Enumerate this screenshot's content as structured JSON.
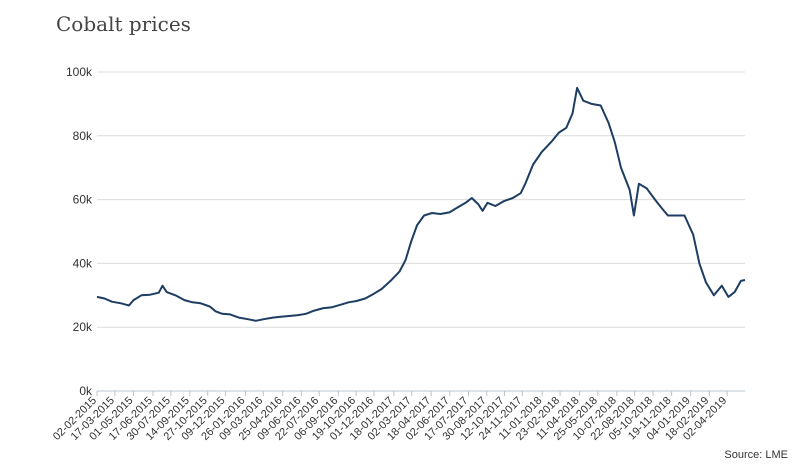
{
  "chart_data": {
    "type": "line",
    "title": "Cobalt prices",
    "source": "Source: LME",
    "xlabel": "",
    "ylabel": "",
    "ylim": [
      0,
      100000
    ],
    "y_ticks": [
      {
        "value": 0,
        "label": "0k"
      },
      {
        "value": 20000,
        "label": "20k"
      },
      {
        "value": 40000,
        "label": "40k"
      },
      {
        "value": 60000,
        "label": "60k"
      },
      {
        "value": 80000,
        "label": "80k"
      },
      {
        "value": 100000,
        "label": "100k"
      }
    ],
    "x_ticks": [
      "02-02-2015",
      "17-03-2015",
      "01-05-2015",
      "17-06-2015",
      "30-07-2015",
      "14-09-2015",
      "27-10-2015",
      "09-12-2015",
      "26-01-2016",
      "09-03-2016",
      "25-04-2016",
      "09-06-2016",
      "22-07-2016",
      "06-09-2016",
      "19-10-2016",
      "01-12-2016",
      "18-01-2017",
      "02-03-2017",
      "18-04-2017",
      "02-06-2017",
      "17-07-2017",
      "30-08-2017",
      "12-10-2017",
      "24-11-2017",
      "11-01-2018",
      "23-02-2018",
      "11-04-2018",
      "25-05-2018",
      "10-07-2018",
      "22-08-2018",
      "05-10-2018",
      "19-11-2018",
      "04-01-2019",
      "18-02-2019",
      "02-04-2019"
    ],
    "grid": true,
    "color": "#1d3d63",
    "series": [
      {
        "name": "",
        "points": [
          [
            "02-02-2015",
            29500
          ],
          [
            "20-02-2015",
            29000
          ],
          [
            "10-03-2015",
            28000
          ],
          [
            "01-04-2015",
            27500
          ],
          [
            "20-04-2015",
            26800
          ],
          [
            "01-05-2015",
            28500
          ],
          [
            "20-05-2015",
            30000
          ],
          [
            "10-06-2015",
            30200
          ],
          [
            "01-07-2015",
            30800
          ],
          [
            "10-07-2015",
            33000
          ],
          [
            "20-07-2015",
            31000
          ],
          [
            "10-08-2015",
            30000
          ],
          [
            "01-09-2015",
            28500
          ],
          [
            "20-09-2015",
            27800
          ],
          [
            "10-10-2015",
            27500
          ],
          [
            "01-11-2015",
            26500
          ],
          [
            "15-11-2015",
            25000
          ],
          [
            "01-12-2015",
            24200
          ],
          [
            "20-12-2015",
            24000
          ],
          [
            "10-01-2016",
            23000
          ],
          [
            "01-02-2016",
            22500
          ],
          [
            "20-02-2016",
            22000
          ],
          [
            "10-03-2016",
            22500
          ],
          [
            "01-04-2016",
            23000
          ],
          [
            "20-04-2016",
            23300
          ],
          [
            "10-05-2016",
            23500
          ],
          [
            "01-06-2016",
            23800
          ],
          [
            "20-06-2016",
            24200
          ],
          [
            "10-07-2016",
            25200
          ],
          [
            "01-08-2016",
            26000
          ],
          [
            "20-08-2016",
            26200
          ],
          [
            "10-09-2016",
            27000
          ],
          [
            "01-10-2016",
            27800
          ],
          [
            "20-10-2016",
            28200
          ],
          [
            "10-11-2016",
            29000
          ],
          [
            "01-12-2016",
            30500
          ],
          [
            "20-12-2016",
            32000
          ],
          [
            "10-01-2017",
            34500
          ],
          [
            "01-02-2017",
            37500
          ],
          [
            "15-02-2017",
            41000
          ],
          [
            "01-03-2017",
            47000
          ],
          [
            "15-03-2017",
            52000
          ],
          [
            "01-04-2017",
            55000
          ],
          [
            "20-04-2017",
            55800
          ],
          [
            "10-05-2017",
            55500
          ],
          [
            "01-06-2017",
            56000
          ],
          [
            "20-06-2017",
            57500
          ],
          [
            "10-07-2017",
            59000
          ],
          [
            "25-07-2017",
            60500
          ],
          [
            "10-08-2017",
            58500
          ],
          [
            "20-08-2017",
            56500
          ],
          [
            "01-09-2017",
            59000
          ],
          [
            "20-09-2017",
            58000
          ],
          [
            "10-10-2017",
            59500
          ],
          [
            "01-11-2017",
            60500
          ],
          [
            "20-11-2017",
            62000
          ],
          [
            "01-12-2017",
            65000
          ],
          [
            "20-12-2017",
            71000
          ],
          [
            "10-01-2018",
            75000
          ],
          [
            "01-02-2018",
            78000
          ],
          [
            "20-02-2018",
            81000
          ],
          [
            "10-03-2018",
            82500
          ],
          [
            "25-03-2018",
            87000
          ],
          [
            "05-04-2018",
            95000
          ],
          [
            "20-04-2018",
            91000
          ],
          [
            "10-05-2018",
            90000
          ],
          [
            "01-06-2018",
            89500
          ],
          [
            "20-06-2018",
            84000
          ],
          [
            "05-07-2018",
            78000
          ],
          [
            "20-07-2018",
            70000
          ],
          [
            "10-08-2018",
            63000
          ],
          [
            "20-08-2018",
            55000
          ],
          [
            "01-09-2018",
            65000
          ],
          [
            "20-09-2018",
            63500
          ],
          [
            "10-10-2018",
            60000
          ],
          [
            "25-10-2018",
            57500
          ],
          [
            "10-11-2018",
            55000
          ],
          [
            "01-12-2018",
            55000
          ],
          [
            "20-12-2018",
            55000
          ],
          [
            "10-01-2019",
            49000
          ],
          [
            "25-01-2019",
            40000
          ],
          [
            "10-02-2019",
            34000
          ],
          [
            "01-03-2019",
            30000
          ],
          [
            "20-03-2019",
            33000
          ],
          [
            "05-04-2019",
            29500
          ],
          [
            "20-04-2019",
            31000
          ],
          [
            "05-05-2019",
            34500
          ],
          [
            "15-05-2019",
            34800
          ]
        ]
      }
    ]
  }
}
